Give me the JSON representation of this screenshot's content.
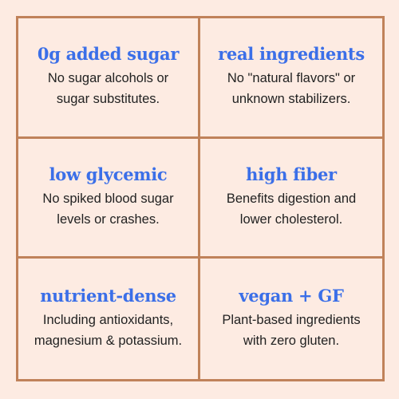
{
  "features": [
    {
      "title": "0g added sugar",
      "lines": [
        "No sugar alcohols or",
        "sugar substitutes."
      ]
    },
    {
      "title": "real ingredients",
      "lines": [
        "No \"natural flavors\" or",
        "unknown stabilizers."
      ]
    },
    {
      "title": "low glycemic",
      "lines": [
        "No spiked blood sugar",
        "levels or crashes."
      ]
    },
    {
      "title": "high fiber",
      "lines": [
        "Benefits digestion and",
        "lower cholesterol."
      ]
    },
    {
      "title": "nutrient-dense",
      "lines": [
        "Including antioxidants,",
        "magnesium & potassium."
      ]
    },
    {
      "title": "vegan + GF",
      "lines": [
        "Plant-based ingredients",
        "with zero gluten."
      ]
    }
  ],
  "colors": {
    "background": "#fdebe2",
    "border": "#c0825a",
    "title": "#3b6fe8",
    "text": "#222222"
  }
}
